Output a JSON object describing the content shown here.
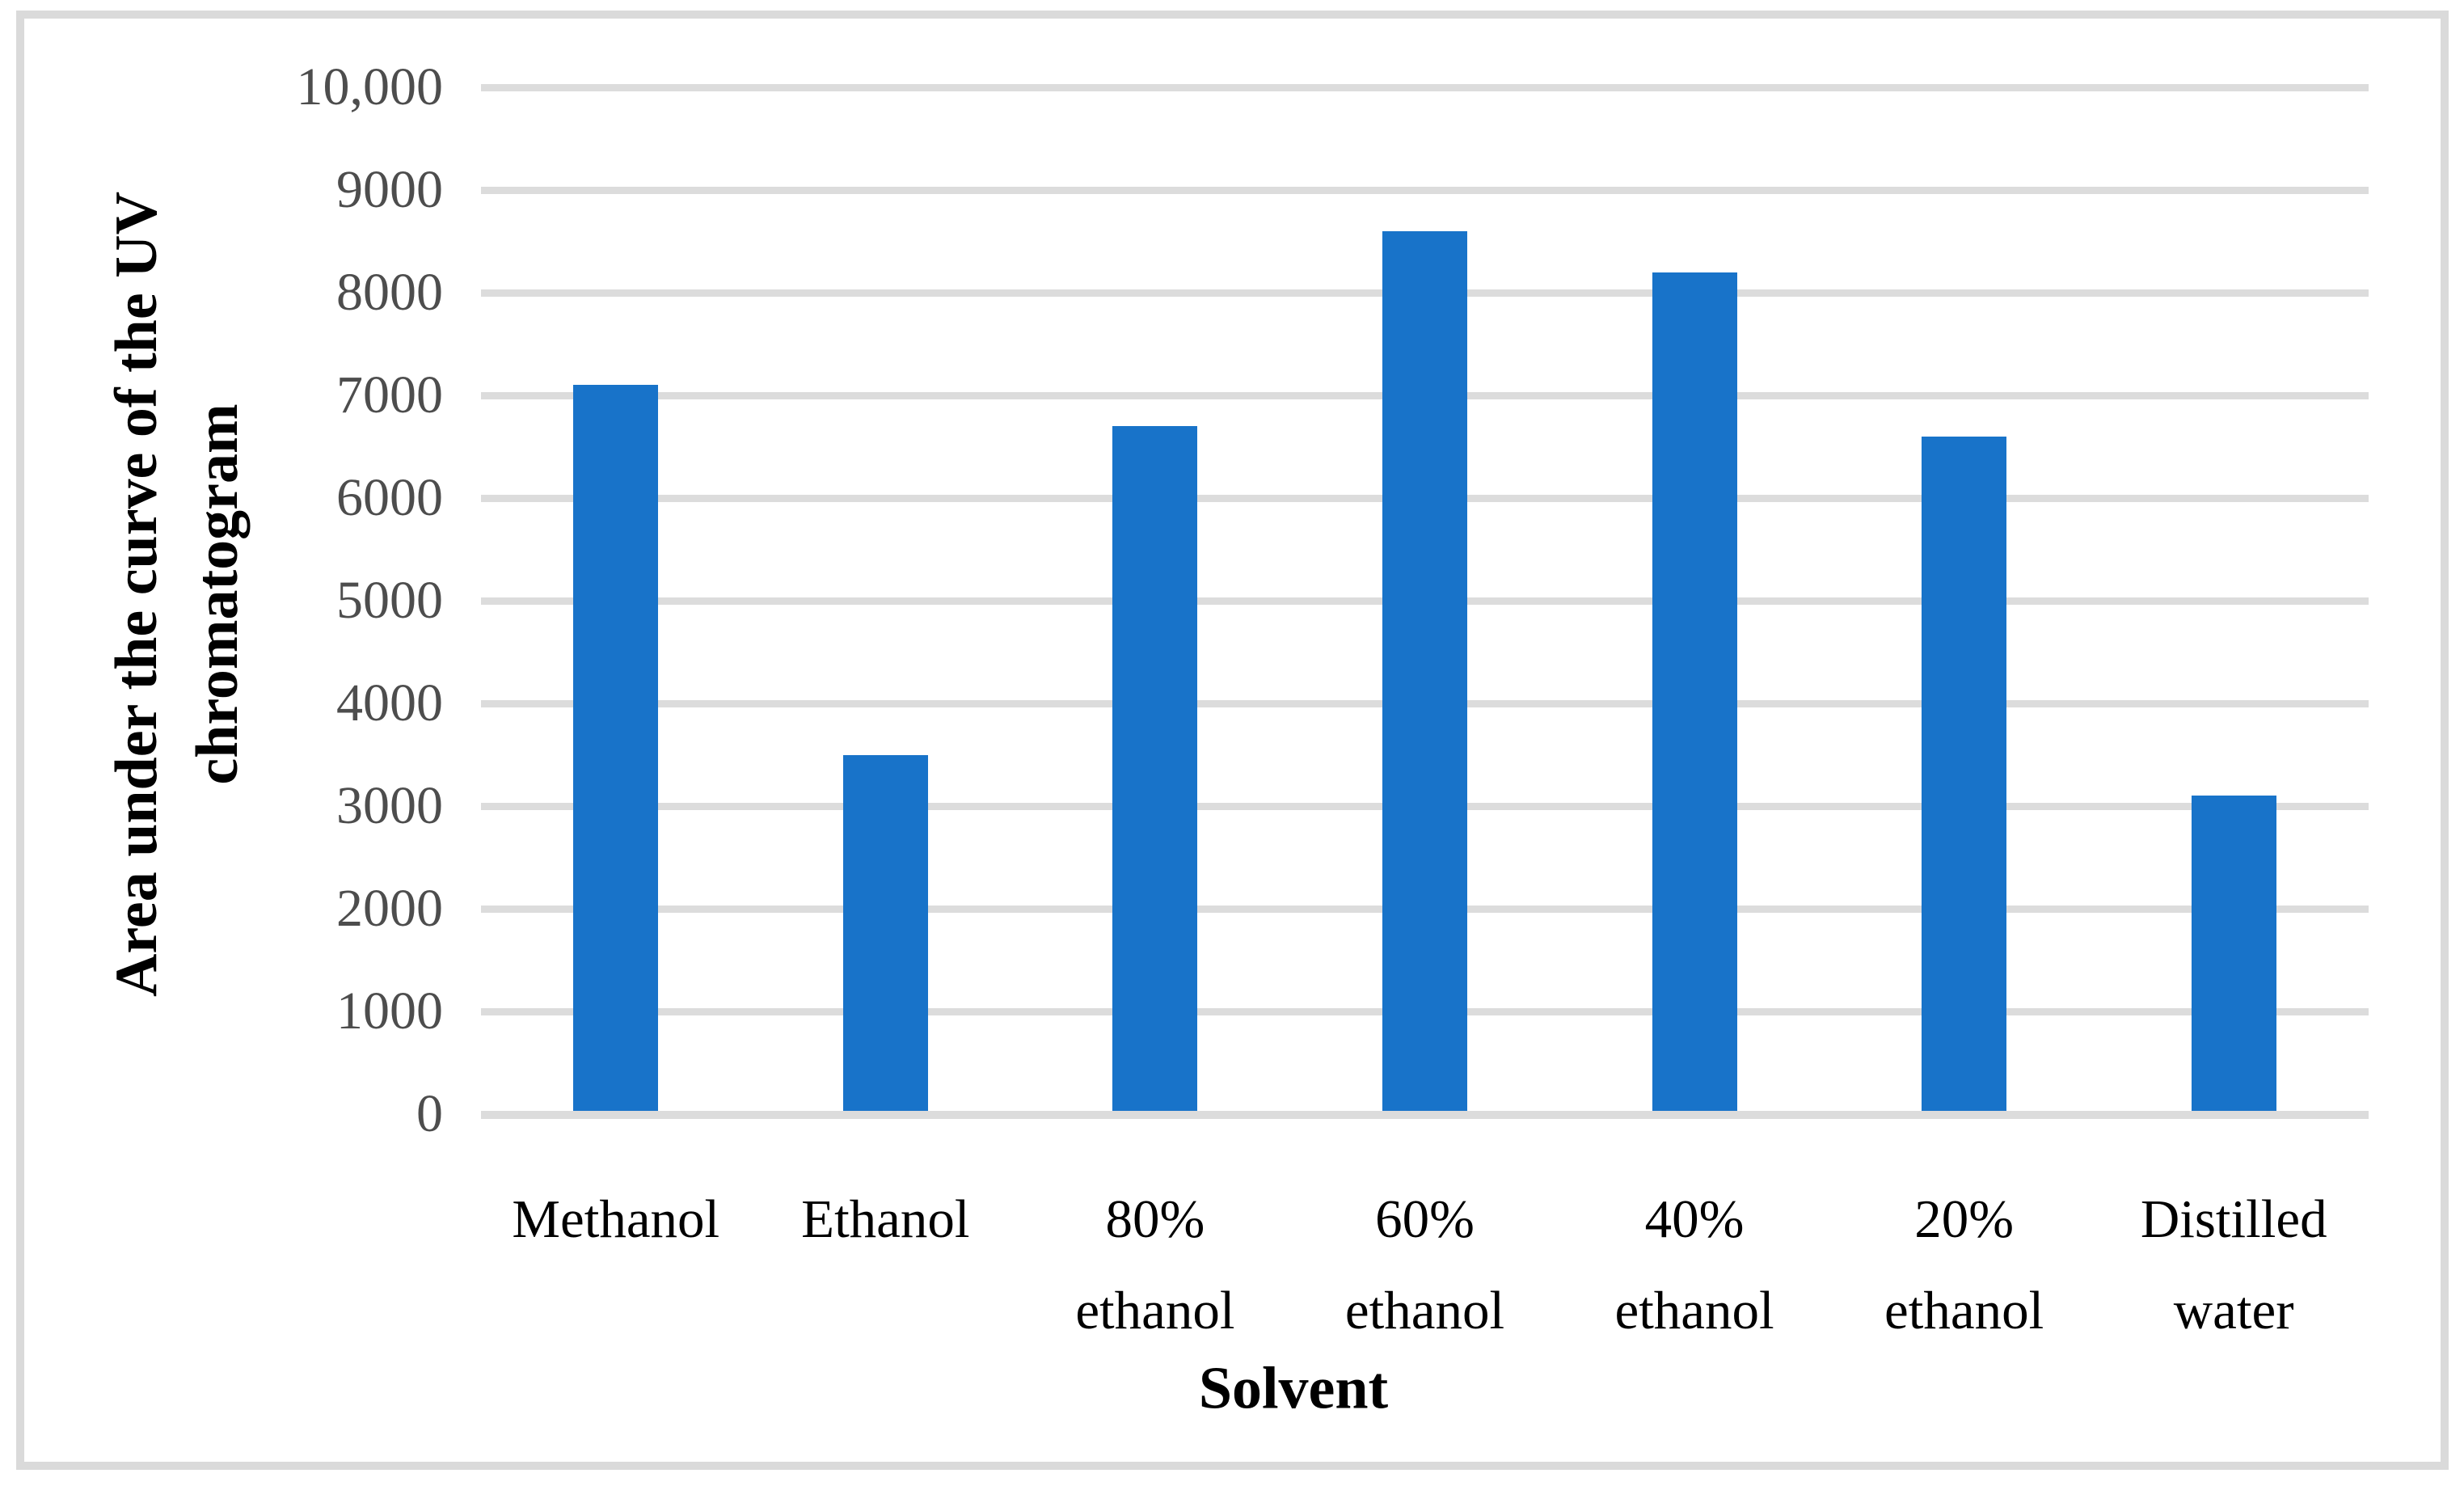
{
  "figure": {
    "background": "#ffffff",
    "border_color": "#dadada"
  },
  "chart_data": {
    "type": "bar",
    "title": "",
    "categories": [
      "Methanol",
      "Ethanol",
      "80% ethanol",
      "60% ethanol",
      "40% ethanol",
      "20% ethanol",
      "Distilled water"
    ],
    "values": [
      7100,
      3500,
      6700,
      8600,
      8200,
      6600,
      3100
    ],
    "xlabel": "Solvent",
    "ylabel": "Area under the curve of the UV chromatogram",
    "ylabel_lines": [
      "Area under the curve of the UV",
      "chromatogram"
    ],
    "ylim": [
      0,
      10000
    ],
    "ytick_interval": 1000,
    "yticks": [
      {
        "value": 0,
        "label": "0"
      },
      {
        "value": 1000,
        "label": "1000"
      },
      {
        "value": 2000,
        "label": "2000"
      },
      {
        "value": 3000,
        "label": "3000"
      },
      {
        "value": 4000,
        "label": "4000"
      },
      {
        "value": 5000,
        "label": "5000"
      },
      {
        "value": 6000,
        "label": "6000"
      },
      {
        "value": 7000,
        "label": "7000"
      },
      {
        "value": 8000,
        "label": "8000"
      },
      {
        "value": 9000,
        "label": "9000"
      },
      {
        "value": 10000,
        "label": "10,000"
      }
    ],
    "grid": "horizontal",
    "legend": "none",
    "bar_color": "#1873c9",
    "gridline_color": "#dcdcdc"
  }
}
